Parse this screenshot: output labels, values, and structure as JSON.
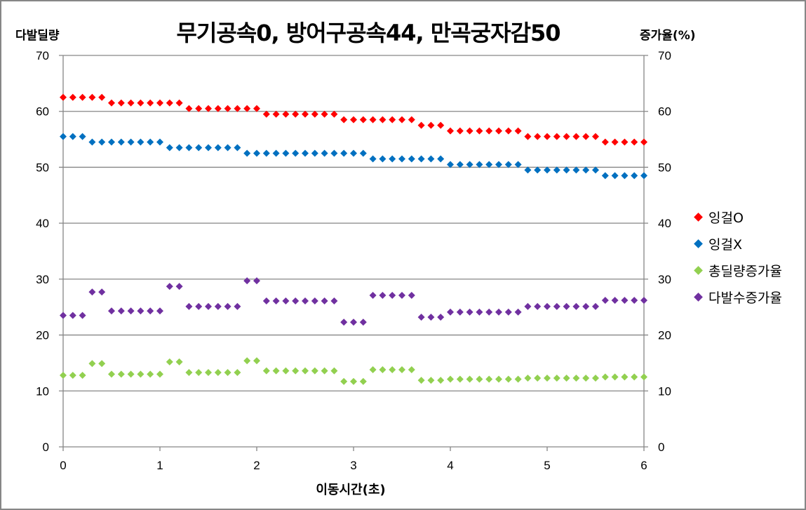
{
  "chart_data": {
    "type": "scatter",
    "title": "무기공속0, 방어구공속44, 만곡궁자감50",
    "xlabel": "이동시간(초)",
    "ylabel": "다발딜량",
    "ylabel_right": "증가율(%)",
    "xlim": [
      0,
      6
    ],
    "ylim": [
      0,
      70
    ],
    "ylim_right": [
      0,
      70
    ],
    "x_ticks": [
      "0",
      "1",
      "2",
      "3",
      "4",
      "5",
      "6"
    ],
    "y_ticks": [
      "0",
      "10",
      "20",
      "30",
      "40",
      "50",
      "60",
      "70"
    ],
    "y_ticks_right": [
      "0",
      "10",
      "20",
      "30",
      "40",
      "50",
      "60",
      "70"
    ],
    "grid": "horizontal",
    "legend_position": "right",
    "x": [
      0,
      0.1,
      0.2,
      0.3,
      0.4,
      0.5,
      0.6,
      0.7,
      0.8,
      0.9,
      1.0,
      1.1,
      1.2,
      1.3,
      1.4,
      1.5,
      1.6,
      1.7,
      1.8,
      1.9,
      2.0,
      2.1,
      2.2,
      2.3,
      2.4,
      2.5,
      2.6,
      2.7,
      2.8,
      2.9,
      3.0,
      3.1,
      3.2,
      3.3,
      3.4,
      3.5,
      3.6,
      3.7,
      3.8,
      3.9,
      4.0,
      4.1,
      4.2,
      4.3,
      4.4,
      4.5,
      4.6,
      4.7,
      4.8,
      4.9,
      5.0,
      5.1,
      5.2,
      5.3,
      5.4,
      5.5,
      5.6,
      5.7,
      5.8,
      5.9,
      6.0
    ],
    "series": [
      {
        "name": "잉걸O",
        "color": "#FF0000",
        "axis": "left",
        "values": [
          62.5,
          62.5,
          62.5,
          62.5,
          62.5,
          61.5,
          61.5,
          61.5,
          61.5,
          61.5,
          61.5,
          61.5,
          61.5,
          60.5,
          60.5,
          60.5,
          60.5,
          60.5,
          60.5,
          60.5,
          60.5,
          59.5,
          59.5,
          59.5,
          59.5,
          59.5,
          59.5,
          59.5,
          59.5,
          58.5,
          58.5,
          58.5,
          58.5,
          58.5,
          58.5,
          58.5,
          58.5,
          57.5,
          57.5,
          57.5,
          56.5,
          56.5,
          56.5,
          56.5,
          56.5,
          56.5,
          56.5,
          56.5,
          55.5,
          55.5,
          55.5,
          55.5,
          55.5,
          55.5,
          55.5,
          55.5,
          54.5,
          54.5,
          54.5,
          54.5,
          54.5
        ]
      },
      {
        "name": "잉걸X",
        "color": "#0070C0",
        "axis": "left",
        "values": [
          55.5,
          55.5,
          55.5,
          54.5,
          54.5,
          54.5,
          54.5,
          54.5,
          54.5,
          54.5,
          54.5,
          53.5,
          53.5,
          53.5,
          53.5,
          53.5,
          53.5,
          53.5,
          53.5,
          52.5,
          52.5,
          52.5,
          52.5,
          52.5,
          52.5,
          52.5,
          52.5,
          52.5,
          52.5,
          52.5,
          52.5,
          52.5,
          51.5,
          51.5,
          51.5,
          51.5,
          51.5,
          51.5,
          51.5,
          51.5,
          50.5,
          50.5,
          50.5,
          50.5,
          50.5,
          50.5,
          50.5,
          50.5,
          49.5,
          49.5,
          49.5,
          49.5,
          49.5,
          49.5,
          49.5,
          49.5,
          48.5,
          48.5,
          48.5,
          48.5,
          48.5
        ]
      },
      {
        "name": "총딜량증가율",
        "color": "#92D050",
        "axis": "right",
        "values": [
          12.8,
          12.8,
          12.8,
          14.9,
          14.9,
          13.0,
          13.0,
          13.0,
          13.0,
          13.0,
          13.0,
          15.2,
          15.2,
          13.3,
          13.3,
          13.3,
          13.3,
          13.3,
          13.3,
          15.4,
          15.4,
          13.6,
          13.6,
          13.6,
          13.6,
          13.6,
          13.6,
          13.6,
          13.6,
          11.7,
          11.7,
          11.7,
          13.8,
          13.8,
          13.8,
          13.8,
          13.8,
          11.9,
          11.9,
          11.9,
          12.1,
          12.1,
          12.1,
          12.1,
          12.1,
          12.1,
          12.1,
          12.1,
          12.3,
          12.3,
          12.3,
          12.3,
          12.3,
          12.3,
          12.3,
          12.3,
          12.5,
          12.5,
          12.5,
          12.5,
          12.5
        ]
      },
      {
        "name": "다발수증가율",
        "color": "#7030A0",
        "axis": "right",
        "values": [
          23.5,
          23.5,
          23.5,
          27.7,
          27.7,
          24.3,
          24.3,
          24.3,
          24.3,
          24.3,
          24.3,
          28.7,
          28.7,
          25.1,
          25.1,
          25.1,
          25.1,
          25.1,
          25.1,
          29.7,
          29.7,
          26.1,
          26.1,
          26.1,
          26.1,
          26.1,
          26.1,
          26.1,
          26.1,
          22.3,
          22.3,
          22.3,
          27.1,
          27.1,
          27.1,
          27.1,
          27.1,
          23.2,
          23.2,
          23.2,
          24.1,
          24.1,
          24.1,
          24.1,
          24.1,
          24.1,
          24.1,
          24.1,
          25.1,
          25.1,
          25.1,
          25.1,
          25.1,
          25.1,
          25.1,
          25.1,
          26.2,
          26.2,
          26.2,
          26.2,
          26.2
        ]
      }
    ]
  }
}
